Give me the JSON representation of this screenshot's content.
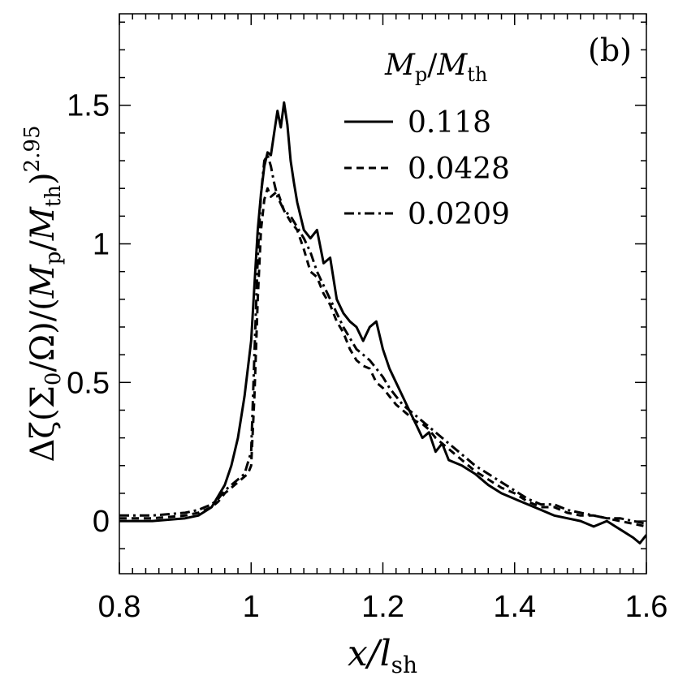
{
  "chart_data": {
    "type": "line",
    "panel_label": "(b)",
    "xlabel": "x/l_sh",
    "xlabel_parts": {
      "main": "x/l",
      "sub": "sh"
    },
    "ylabel": "Δζ(Σ0/Ω)/(Mp/Mth)^2.95",
    "ylabel_parts": {
      "a": "Δζ(Σ",
      "a_sub": "0",
      "b": "/Ω)/(",
      "c": "M",
      "c_sub": "p",
      "d": "/",
      "e": "M",
      "e_sub": "th",
      "f": ")",
      "exp": "2.95"
    },
    "legend_title": "Mp/Mth",
    "legend_title_parts": {
      "m1": "M",
      "s1": "p",
      "slash": "/",
      "m2": "M",
      "s2": "th"
    },
    "xlim": [
      0.8,
      1.6
    ],
    "ylim": [
      -0.19,
      1.83
    ],
    "x_ticks": [
      0.8,
      1.0,
      1.2,
      1.4,
      1.6
    ],
    "x_tick_labels": [
      "0.8",
      "1",
      "1.2",
      "1.4",
      "1.6"
    ],
    "y_ticks": [
      0,
      0.5,
      1.0,
      1.5
    ],
    "y_tick_labels": [
      "0",
      "0.5",
      "1",
      "1.5"
    ],
    "series": [
      {
        "name": "0.118",
        "dash": "solid",
        "x": [
          0.8,
          0.85,
          0.9,
          0.92,
          0.94,
          0.95,
          0.96,
          0.97,
          0.98,
          0.99,
          1.0,
          1.005,
          1.01,
          1.015,
          1.02,
          1.025,
          1.03,
          1.035,
          1.04,
          1.045,
          1.05,
          1.055,
          1.06,
          1.065,
          1.07,
          1.08,
          1.09,
          1.1,
          1.11,
          1.12,
          1.13,
          1.14,
          1.15,
          1.16,
          1.17,
          1.18,
          1.19,
          1.2,
          1.21,
          1.22,
          1.23,
          1.24,
          1.25,
          1.26,
          1.27,
          1.28,
          1.29,
          1.3,
          1.32,
          1.34,
          1.36,
          1.38,
          1.4,
          1.42,
          1.44,
          1.46,
          1.48,
          1.5,
          1.52,
          1.54,
          1.56,
          1.58,
          1.59,
          1.6
        ],
        "values": [
          0.0,
          0.0,
          0.01,
          0.02,
          0.05,
          0.09,
          0.13,
          0.2,
          0.3,
          0.45,
          0.65,
          0.85,
          1.05,
          1.18,
          1.28,
          1.33,
          1.32,
          1.4,
          1.48,
          1.42,
          1.51,
          1.43,
          1.3,
          1.22,
          1.15,
          1.05,
          1.02,
          1.05,
          0.93,
          0.95,
          0.8,
          0.75,
          0.72,
          0.7,
          0.65,
          0.7,
          0.72,
          0.62,
          0.55,
          0.5,
          0.45,
          0.4,
          0.35,
          0.3,
          0.32,
          0.25,
          0.28,
          0.22,
          0.2,
          0.17,
          0.13,
          0.1,
          0.08,
          0.06,
          0.04,
          0.02,
          0.01,
          0.0,
          -0.02,
          0.0,
          -0.03,
          -0.06,
          -0.08,
          -0.05
        ]
      },
      {
        "name": "0.0428",
        "dash": "dashed",
        "x": [
          0.8,
          0.85,
          0.9,
          0.92,
          0.94,
          0.95,
          0.96,
          0.97,
          0.98,
          0.99,
          0.995,
          1.0,
          1.005,
          1.01,
          1.015,
          1.02,
          1.025,
          1.03,
          1.04,
          1.05,
          1.06,
          1.07,
          1.08,
          1.09,
          1.1,
          1.11,
          1.12,
          1.13,
          1.14,
          1.15,
          1.16,
          1.17,
          1.18,
          1.19,
          1.2,
          1.21,
          1.22,
          1.23,
          1.24,
          1.25,
          1.26,
          1.27,
          1.28,
          1.29,
          1.3,
          1.32,
          1.34,
          1.36,
          1.38,
          1.4,
          1.42,
          1.44,
          1.46,
          1.48,
          1.5,
          1.52,
          1.54,
          1.56,
          1.58,
          1.6
        ],
        "values": [
          0.01,
          0.01,
          0.02,
          0.03,
          0.05,
          0.07,
          0.1,
          0.12,
          0.14,
          0.16,
          0.17,
          0.2,
          0.45,
          0.8,
          1.05,
          1.16,
          1.2,
          1.17,
          1.19,
          1.12,
          1.08,
          1.05,
          0.98,
          0.9,
          0.88,
          0.82,
          0.78,
          0.72,
          0.68,
          0.62,
          0.58,
          0.56,
          0.55,
          0.5,
          0.48,
          0.45,
          0.42,
          0.4,
          0.38,
          0.36,
          0.35,
          0.33,
          0.3,
          0.28,
          0.26,
          0.22,
          0.18,
          0.15,
          0.12,
          0.1,
          0.07,
          0.05,
          0.05,
          0.03,
          0.02,
          0.02,
          0.01,
          0.0,
          -0.01,
          -0.02
        ]
      },
      {
        "name": "0.0209",
        "dash": "dashdot",
        "x": [
          0.8,
          0.85,
          0.9,
          0.92,
          0.94,
          0.95,
          0.96,
          0.97,
          0.98,
          0.99,
          1.0,
          1.005,
          1.01,
          1.015,
          1.02,
          1.025,
          1.03,
          1.035,
          1.04,
          1.05,
          1.06,
          1.07,
          1.08,
          1.09,
          1.1,
          1.11,
          1.12,
          1.13,
          1.14,
          1.15,
          1.16,
          1.17,
          1.18,
          1.19,
          1.2,
          1.21,
          1.22,
          1.23,
          1.24,
          1.25,
          1.26,
          1.27,
          1.28,
          1.29,
          1.3,
          1.32,
          1.34,
          1.36,
          1.38,
          1.4,
          1.42,
          1.44,
          1.46,
          1.48,
          1.5,
          1.52,
          1.54,
          1.56,
          1.58,
          1.6
        ],
        "values": [
          0.02,
          0.02,
          0.03,
          0.04,
          0.06,
          0.08,
          0.11,
          0.13,
          0.15,
          0.17,
          0.25,
          0.6,
          0.95,
          1.18,
          1.3,
          1.32,
          1.28,
          1.22,
          1.17,
          1.12,
          1.1,
          1.06,
          1.02,
          0.97,
          0.9,
          0.85,
          0.8,
          0.75,
          0.7,
          0.66,
          0.62,
          0.6,
          0.58,
          0.55,
          0.52,
          0.48,
          0.45,
          0.42,
          0.4,
          0.38,
          0.36,
          0.34,
          0.32,
          0.3,
          0.28,
          0.24,
          0.2,
          0.17,
          0.14,
          0.11,
          0.08,
          0.06,
          0.06,
          0.04,
          0.03,
          0.02,
          0.01,
          0.01,
          0.0,
          -0.01
        ]
      }
    ]
  }
}
